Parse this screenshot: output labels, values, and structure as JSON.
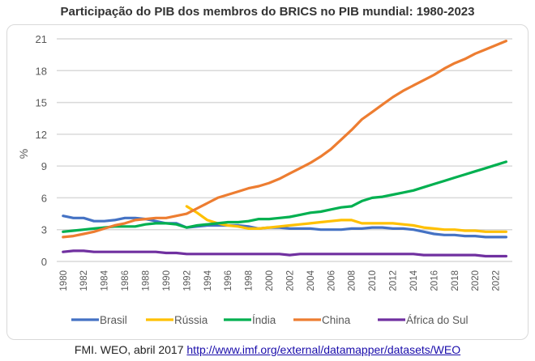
{
  "chart_data": {
    "type": "line",
    "title": "Participação do PIB dos membros do BRICS no PIB mundial: 1980-2023",
    "xlabel": "",
    "ylabel": "%",
    "ylim": [
      0,
      21
    ],
    "yticks": [
      0,
      3,
      6,
      9,
      12,
      15,
      18,
      21
    ],
    "xticks": [
      1980,
      1982,
      1984,
      1986,
      1988,
      1990,
      1992,
      1994,
      1996,
      1998,
      2000,
      2002,
      2004,
      2006,
      2008,
      2010,
      2012,
      2014,
      2016,
      2018,
      2020,
      2022
    ],
    "grid": true,
    "legend": "bottom",
    "x_start": 1980,
    "series": [
      {
        "name": "Brasil",
        "color": "#4472c4",
        "start": 1980,
        "values": [
          4.3,
          4.1,
          4.1,
          3.8,
          3.8,
          3.9,
          4.1,
          4.1,
          4.0,
          3.8,
          3.6,
          3.6,
          3.2,
          3.3,
          3.4,
          3.4,
          3.4,
          3.4,
          3.3,
          3.1,
          3.2,
          3.2,
          3.1,
          3.1,
          3.1,
          3.0,
          3.0,
          3.0,
          3.1,
          3.1,
          3.2,
          3.2,
          3.1,
          3.1,
          3.0,
          2.8,
          2.6,
          2.5,
          2.5,
          2.4,
          2.4,
          2.3,
          2.3,
          2.3
        ]
      },
      {
        "name": "Rússia",
        "color": "#ffc000",
        "start": 1992,
        "values": [
          5.2,
          4.6,
          3.9,
          3.6,
          3.4,
          3.3,
          3.1,
          3.1,
          3.2,
          3.3,
          3.4,
          3.5,
          3.6,
          3.7,
          3.8,
          3.9,
          3.9,
          3.6,
          3.6,
          3.6,
          3.6,
          3.5,
          3.4,
          3.2,
          3.1,
          3.0,
          3.0,
          2.9,
          2.9,
          2.8,
          2.8,
          2.8
        ]
      },
      {
        "name": "Índia",
        "color": "#00b050",
        "start": 1980,
        "values": [
          2.8,
          2.9,
          3.0,
          3.1,
          3.2,
          3.3,
          3.3,
          3.3,
          3.5,
          3.6,
          3.6,
          3.5,
          3.2,
          3.4,
          3.5,
          3.6,
          3.7,
          3.7,
          3.8,
          4.0,
          4.0,
          4.1,
          4.2,
          4.4,
          4.6,
          4.7,
          4.9,
          5.1,
          5.2,
          5.7,
          6.0,
          6.1,
          6.3,
          6.5,
          6.7,
          7.0,
          7.3,
          7.6,
          7.9,
          8.2,
          8.5,
          8.8,
          9.1,
          9.4
        ]
      },
      {
        "name": "China",
        "color": "#ed7d31",
        "start": 1980,
        "values": [
          2.3,
          2.4,
          2.6,
          2.8,
          3.1,
          3.4,
          3.6,
          3.9,
          4.0,
          4.1,
          4.1,
          4.3,
          4.5,
          5.0,
          5.5,
          6.0,
          6.3,
          6.6,
          6.9,
          7.1,
          7.4,
          7.8,
          8.3,
          8.8,
          9.3,
          9.9,
          10.6,
          11.5,
          12.4,
          13.4,
          14.1,
          14.8,
          15.5,
          16.1,
          16.6,
          17.1,
          17.6,
          18.2,
          18.7,
          19.1,
          19.6,
          20.0,
          20.4,
          20.8
        ]
      },
      {
        "name": "África do Sul",
        "color": "#7030a0",
        "start": 1980,
        "values": [
          0.9,
          1.0,
          1.0,
          0.9,
          0.9,
          0.9,
          0.9,
          0.9,
          0.9,
          0.9,
          0.8,
          0.8,
          0.7,
          0.7,
          0.7,
          0.7,
          0.7,
          0.7,
          0.7,
          0.7,
          0.7,
          0.7,
          0.6,
          0.7,
          0.7,
          0.7,
          0.7,
          0.7,
          0.7,
          0.7,
          0.7,
          0.7,
          0.7,
          0.7,
          0.7,
          0.6,
          0.6,
          0.6,
          0.6,
          0.6,
          0.6,
          0.5,
          0.5,
          0.5
        ]
      }
    ]
  },
  "source": {
    "text": "FMI. WEO, abril 2017 ",
    "link": "http://www.imf.org/external/datamapper/datasets/WEO"
  }
}
